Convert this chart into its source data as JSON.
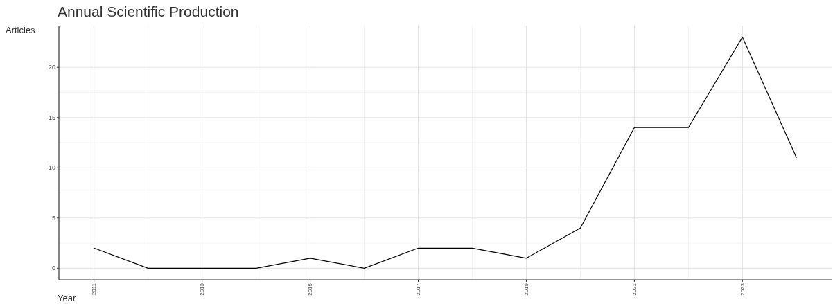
{
  "chart_data": {
    "type": "line",
    "title": "Annual Scientific Production",
    "xlabel": "Year",
    "ylabel": "Articles",
    "x": [
      2011,
      2012,
      2013,
      2014,
      2015,
      2016,
      2017,
      2018,
      2019,
      2020,
      2021,
      2022,
      2023,
      2024
    ],
    "series": [
      {
        "color": "#000000",
        "values": [
          2,
          0,
          0,
          0,
          1,
          0,
          2,
          2,
          1,
          4,
          14,
          14,
          23,
          11
        ]
      }
    ],
    "xlim": [
      2010.35,
      2024.65
    ],
    "xticks": [
      2011,
      2013,
      2015,
      2017,
      2019,
      2021,
      2023
    ],
    "ylim": [
      -1.15,
      24.15
    ],
    "yticks": [
      0,
      5,
      10,
      15,
      20
    ],
    "grid": true,
    "marker": "none",
    "line_style": "solid"
  }
}
